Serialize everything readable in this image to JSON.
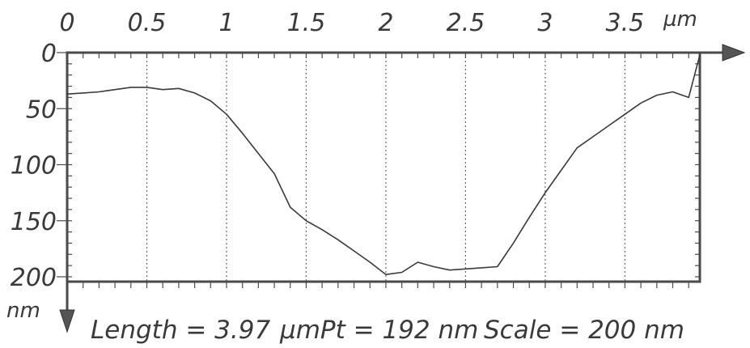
{
  "chart_data": {
    "type": "line",
    "x_axis": {
      "position": "top",
      "ticks": [
        "0",
        "0.5",
        "1",
        "1.5",
        "2",
        "2.5",
        "3",
        "3.5"
      ],
      "tick_values": [
        0,
        0.5,
        1,
        1.5,
        2,
        2.5,
        3,
        3.5
      ],
      "unit": "µm",
      "range": [
        0,
        3.97
      ]
    },
    "y_axis": {
      "position": "left",
      "direction": "down",
      "ticks": [
        "0",
        "50",
        "100",
        "150",
        "200"
      ],
      "tick_values": [
        0,
        50,
        100,
        150,
        200
      ],
      "unit": "nm",
      "range": [
        0,
        200
      ]
    },
    "grid": "vertical dotted lines at x ticks",
    "series": [
      {
        "x": [
          0,
          0.1,
          0.2,
          0.3,
          0.4,
          0.5,
          0.6,
          0.7,
          0.8,
          0.9,
          1.0,
          1.1,
          1.2,
          1.3,
          1.4,
          1.5,
          1.6,
          1.7,
          1.8,
          1.9,
          2.0,
          2.1,
          2.2,
          2.3,
          2.4,
          2.5,
          2.6,
          2.7,
          2.8,
          2.9,
          3.0,
          3.1,
          3.2,
          3.3,
          3.4,
          3.5,
          3.6,
          3.7,
          3.8,
          3.9,
          3.97
        ],
        "y": [
          37,
          36,
          35,
          33,
          31,
          31,
          33,
          32,
          36,
          43,
          55,
          72,
          90,
          108,
          138,
          150,
          158,
          167,
          177,
          187,
          198,
          196,
          187,
          191,
          194,
          193,
          192,
          191,
          170,
          147,
          125,
          105,
          85,
          75,
          65,
          55,
          45,
          38,
          35,
          40,
          2
        ]
      }
    ]
  },
  "caption": {
    "length_text": "Length = 3.97",
    "pt_text": "µmPt = 192 nm",
    "scale_text": "Scale = 200 nm"
  }
}
